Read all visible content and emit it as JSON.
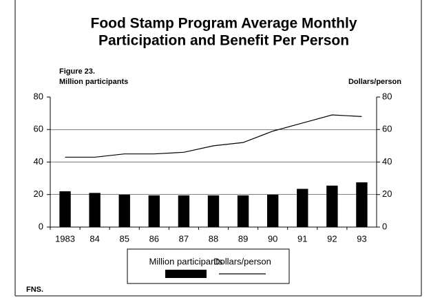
{
  "chart_data": {
    "type": "bar_line",
    "title": [
      "Food Stamp Program Average Monthly",
      "Participation and Benefit Per Person"
    ],
    "figure_label": "Figure 23.",
    "y_label": "Million participants",
    "y2_label": "Dollars/person",
    "source": "FNS.",
    "categories": [
      "1983",
      "84",
      "85",
      "86",
      "87",
      "88",
      "89",
      "90",
      "91",
      "92",
      "93"
    ],
    "series": [
      {
        "name": "Million participants",
        "type": "bar",
        "color": "#000000",
        "values": [
          22,
          21,
          20,
          19.5,
          19.5,
          19.5,
          19.5,
          20,
          23.5,
          25.5,
          27.5
        ]
      },
      {
        "name": "Dollars/person",
        "type": "line",
        "axis": "y2",
        "color": "#000000",
        "values": [
          43,
          43,
          45,
          45,
          46,
          50,
          52,
          59,
          64,
          69,
          68
        ]
      }
    ],
    "ylim": [
      0,
      80
    ],
    "yticks": [
      0,
      20,
      40,
      60,
      80
    ],
    "y2lim": [
      0,
      80
    ],
    "y2ticks": [
      0,
      20,
      40,
      60,
      80
    ],
    "grid": true
  }
}
